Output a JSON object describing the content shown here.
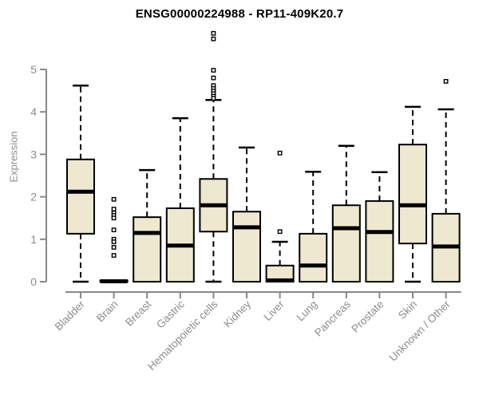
{
  "chart_data": {
    "type": "boxplot",
    "title": "ENSG00000224988 - RP11-409K20.7",
    "xlabel": "",
    "ylabel": "Expression",
    "ylim": [
      0,
      5.9
    ],
    "yticks": [
      0,
      1,
      2,
      3,
      4,
      5
    ],
    "grid": false,
    "legend": "none",
    "categories": [
      "Bladder",
      "Brain",
      "Breast",
      "Gastric",
      "Hematopoietic cells",
      "Kidney",
      "Liver",
      "Lung",
      "Pancreas",
      "Prostate",
      "Skin",
      "Unknown / Other"
    ],
    "boxes": [
      {
        "category": "Bladder",
        "whislo": 0,
        "q1": 1.13,
        "med": 2.12,
        "q3": 2.88,
        "whishi": 4.62,
        "outliers": []
      },
      {
        "category": "Brain",
        "whislo": 0,
        "q1": 0.0,
        "med": 0.01,
        "q3": 0.03,
        "whishi": 0.03,
        "outliers": [
          1.94,
          1.71,
          1.62,
          1.56,
          1.5,
          1.22,
          1.0,
          0.94,
          0.81,
          0.62
        ]
      },
      {
        "category": "Breast",
        "whislo": 0,
        "q1": 0.0,
        "med": 1.15,
        "q3": 1.52,
        "whishi": 2.63,
        "outliers": []
      },
      {
        "category": "Gastric",
        "whislo": 0,
        "q1": 0.0,
        "med": 0.85,
        "q3": 1.73,
        "whishi": 3.85,
        "outliers": []
      },
      {
        "category": "Hematopoietic cells",
        "whislo": 0,
        "q1": 1.18,
        "med": 1.8,
        "q3": 2.42,
        "whishi": 4.28,
        "outliers": [
          5.85,
          5.72,
          4.98,
          4.8,
          4.62,
          4.55,
          4.49,
          4.43,
          4.37,
          4.32
        ]
      },
      {
        "category": "Kidney",
        "whislo": 0,
        "q1": 0.0,
        "med": 1.28,
        "q3": 1.65,
        "whishi": 3.16,
        "outliers": []
      },
      {
        "category": "Liver",
        "whislo": 0,
        "q1": 0.0,
        "med": 0.03,
        "q3": 0.38,
        "whishi": 0.94,
        "outliers": [
          3.03,
          1.18
        ]
      },
      {
        "category": "Lung",
        "whislo": 0,
        "q1": 0.0,
        "med": 0.38,
        "q3": 1.13,
        "whishi": 2.59,
        "outliers": []
      },
      {
        "category": "Pancreas",
        "whislo": 0,
        "q1": 0.0,
        "med": 1.26,
        "q3": 1.8,
        "whishi": 3.2,
        "outliers": []
      },
      {
        "category": "Prostate",
        "whislo": 0,
        "q1": 0.0,
        "med": 1.17,
        "q3": 1.9,
        "whishi": 2.58,
        "outliers": []
      },
      {
        "category": "Skin",
        "whislo": 0,
        "q1": 0.9,
        "med": 1.8,
        "q3": 3.23,
        "whishi": 4.12,
        "outliers": []
      },
      {
        "category": "Unknown / Other",
        "whislo": 0,
        "q1": 0.0,
        "med": 0.83,
        "q3": 1.6,
        "whishi": 4.06,
        "outliers": [
          4.72
        ]
      }
    ],
    "colors": {
      "box_fill": "#EDE8CF",
      "box_border": "#000000",
      "median": "#000000",
      "whisker": "#000000",
      "outlier_stroke": "#000000",
      "axis_line": "#888888",
      "tick_text": "#8c8c8c",
      "title_text": "#000000"
    }
  }
}
